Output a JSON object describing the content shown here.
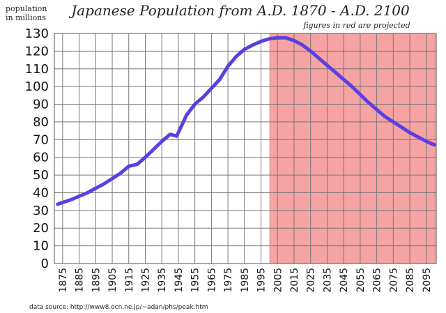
{
  "chart_data": {
    "type": "line",
    "title": "Japanese Population from A.D. 1870 - A.D. 2100",
    "subtitle": "figures in red are projected",
    "ylabel_line1": "population",
    "ylabel_line2": "in millions",
    "source": "data source: http://www8.ocn.ne.jp/~adan/phs/peak.htm",
    "xlim": [
      1870,
      2101
    ],
    "ylim": [
      0,
      130
    ],
    "grid": true,
    "projection_start": 2000,
    "colors": {
      "line": "#5b3fe0",
      "projection": "#f6a3a3",
      "grid": "#777777"
    },
    "y_ticks": [
      0,
      10,
      20,
      30,
      40,
      50,
      60,
      70,
      80,
      90,
      100,
      110,
      120,
      130
    ],
    "x_ticks": [
      1875,
      1885,
      1895,
      1905,
      1915,
      1925,
      1935,
      1945,
      1955,
      1965,
      1975,
      1985,
      1995,
      2005,
      2015,
      2025,
      2035,
      2045,
      2055,
      2065,
      2075,
      2085,
      2095
    ],
    "series": [
      {
        "x": [
          1872,
          1875,
          1880,
          1885,
          1890,
          1895,
          1900,
          1905,
          1910,
          1915,
          1920,
          1925,
          1930,
          1935,
          1940,
          1944,
          1947,
          1950,
          1955,
          1960,
          1965,
          1970,
          1975,
          1980,
          1985,
          1990,
          1995,
          2000,
          2005,
          2010,
          2015,
          2020,
          2025,
          2030,
          2035,
          2040,
          2045,
          2050,
          2055,
          2060,
          2065,
          2070,
          2075,
          2080,
          2085,
          2090,
          2095,
          2100
        ],
        "y": [
          33.5,
          34.5,
          36,
          38,
          40,
          42.5,
          45,
          48,
          51,
          55,
          56,
          60,
          64.5,
          69,
          73,
          72,
          78,
          84,
          90,
          94,
          99,
          104,
          111.5,
          117,
          121,
          123.5,
          125.5,
          127,
          127.5,
          127.5,
          126,
          123.5,
          120,
          116,
          112,
          108,
          104,
          100,
          95.5,
          91,
          87,
          83,
          80,
          77,
          74,
          71.5,
          69,
          67
        ]
      }
    ]
  }
}
